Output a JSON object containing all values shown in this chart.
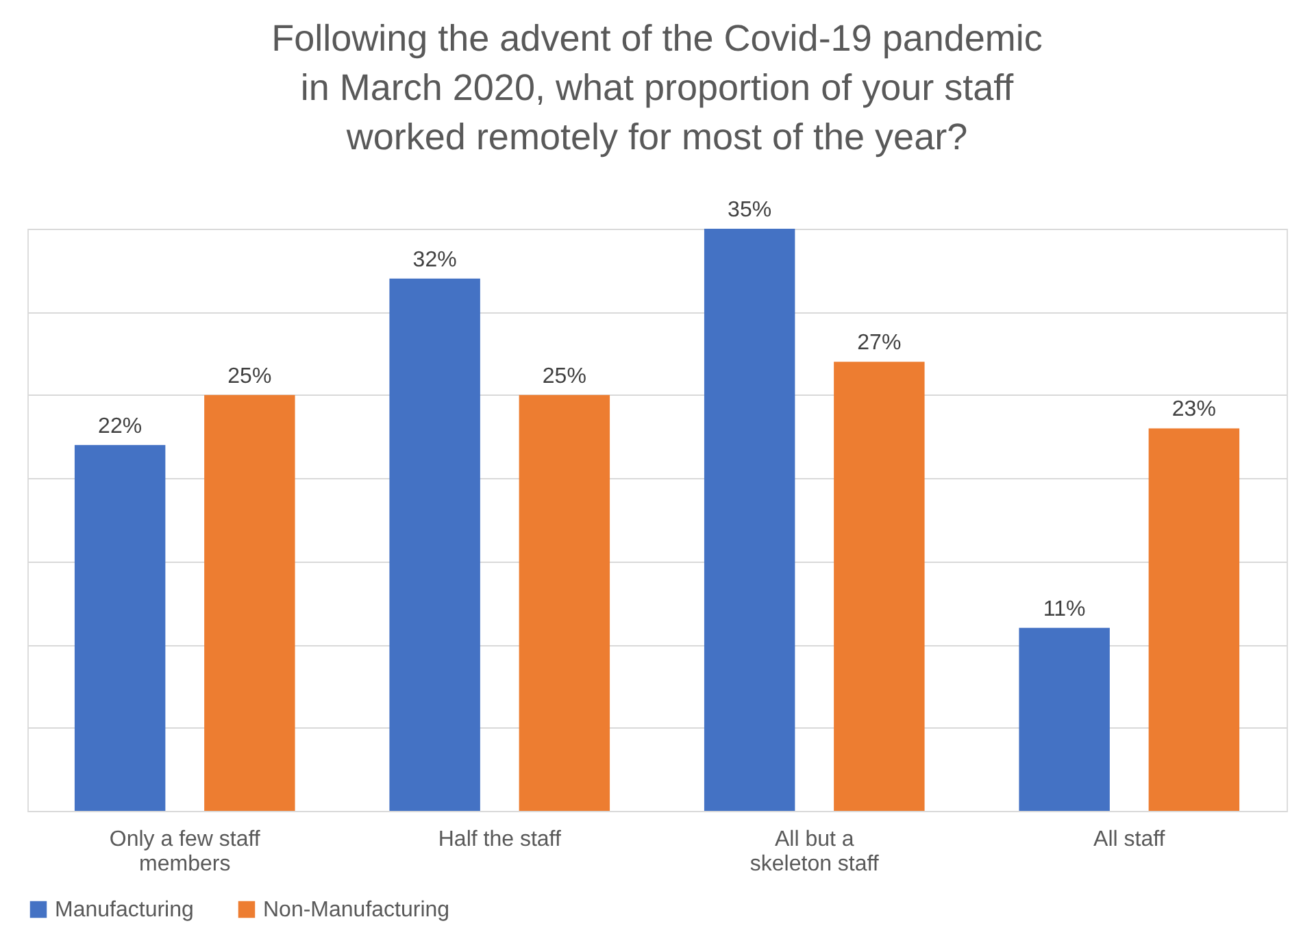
{
  "chart_data": {
    "type": "bar",
    "title": "Following the advent of the Covid-19 pandemic in March 2020, what proportion of your staff worked remotely for most of the year?",
    "categories": [
      "Only a few staff members",
      "Half the staff",
      "All but a skeleton staff",
      "All staff"
    ],
    "series": [
      {
        "name": "Manufacturing",
        "color": "#4472c4",
        "values": [
          22,
          32,
          35,
          11
        ],
        "value_labels": [
          "22%",
          "32%",
          "35%",
          "11%"
        ]
      },
      {
        "name": "Non-Manufacturing",
        "color": "#ed7d31",
        "values": [
          25,
          25,
          27,
          23
        ],
        "value_labels": [
          "25%",
          "25%",
          "27%",
          "23%"
        ]
      }
    ],
    "grid": "y",
    "legend": "bottom",
    "tick_labels": "x"
  }
}
